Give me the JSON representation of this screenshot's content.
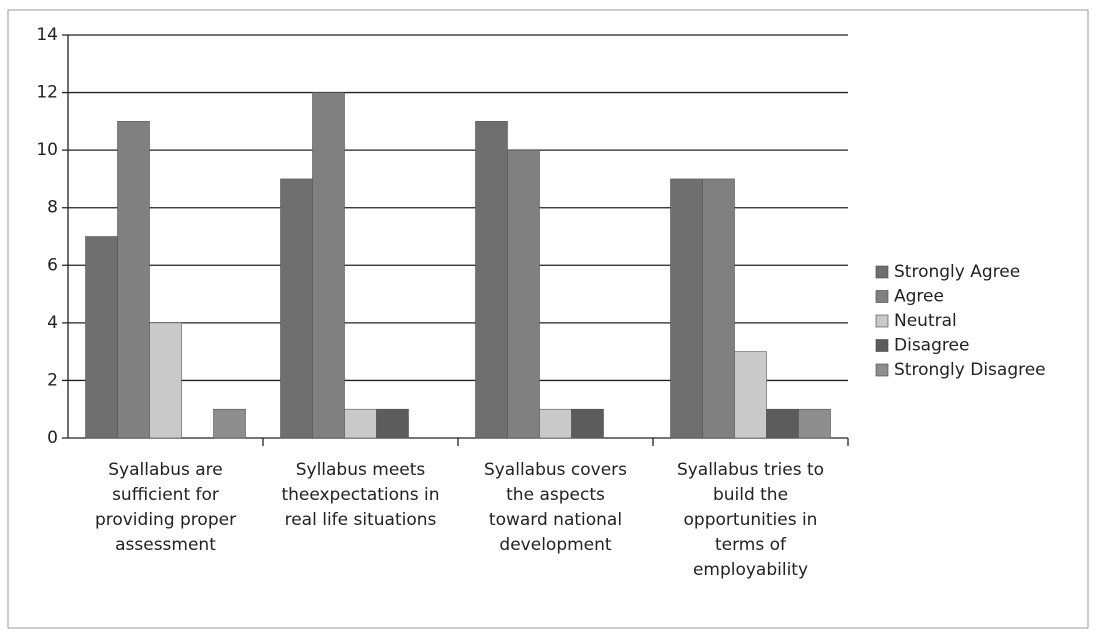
{
  "chart_data": {
    "type": "bar",
    "categories": [
      "Syallabus are\nsufficient for\nproviding proper\nassessment",
      "Syllabus meets\ntheexpectations in\nreal life situations",
      "Syallabus covers\nthe aspects\ntoward national\ndevelopment",
      "Syallabus tries to\nbuild the\nopportunities in\nterms of\nemployability"
    ],
    "series": [
      {
        "name": "Strongly Agree",
        "color": "#6f6f6f",
        "values": [
          7,
          9,
          11,
          9
        ]
      },
      {
        "name": "Agree",
        "color": "#808080",
        "values": [
          11,
          12,
          10,
          9
        ]
      },
      {
        "name": "Neutral",
        "color": "#c9c9c9",
        "values": [
          4,
          1,
          1,
          3
        ]
      },
      {
        "name": "Disagree",
        "color": "#5c5c5c",
        "values": [
          0,
          1,
          1,
          1
        ]
      },
      {
        "name": "Strongly Disagree",
        "color": "#8e8e8e",
        "values": [
          1,
          0,
          0,
          1
        ]
      }
    ],
    "ylim": [
      0,
      14
    ],
    "yticks": [
      0,
      2,
      4,
      6,
      8,
      10,
      12,
      14
    ],
    "grid": true,
    "legend": "right"
  }
}
